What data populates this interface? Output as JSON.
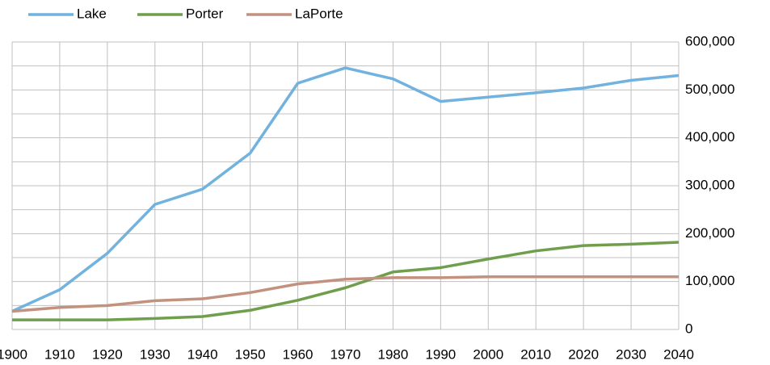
{
  "chart_data": {
    "type": "line",
    "x": [
      1900,
      1910,
      1920,
      1930,
      1940,
      1950,
      1960,
      1970,
      1980,
      1990,
      2000,
      2010,
      2020,
      2030,
      2040
    ],
    "series": [
      {
        "name": "Lake",
        "color": "#71b2de",
        "values": [
          38000,
          83000,
          159000,
          261000,
          293000,
          368000,
          514000,
          546000,
          523000,
          476000,
          485000,
          494000,
          504000,
          520000,
          530000
        ]
      },
      {
        "name": "Porter",
        "color": "#6f9e4c",
        "values": [
          20000,
          20000,
          20000,
          23000,
          27000,
          40000,
          61000,
          87000,
          120000,
          129000,
          147000,
          164000,
          175000,
          178000,
          182000
        ]
      },
      {
        "name": "LaPorte",
        "color": "#c3917f",
        "values": [
          38000,
          46000,
          50000,
          60000,
          64000,
          77000,
          95000,
          105000,
          108000,
          108000,
          110000,
          110000,
          110000,
          110000,
          110000
        ]
      }
    ],
    "xlim": [
      1900,
      2040
    ],
    "xticks": [
      1900,
      1910,
      1920,
      1930,
      1940,
      1950,
      1960,
      1970,
      1980,
      1990,
      2000,
      2010,
      2020,
      2030,
      2040
    ],
    "ylim": [
      0,
      600000
    ],
    "yticks": [
      0,
      {
        "value": 100000,
        "label": "100,000"
      },
      {
        "value": 200000,
        "label": "200,000"
      },
      {
        "value": 300000,
        "label": "300,000"
      },
      {
        "value": 400000,
        "label": "400,000"
      },
      {
        "value": 500000,
        "label": "500,000"
      },
      {
        "value": 600000,
        "label": "600,000"
      }
    ],
    "yminor_ticks": [
      50000,
      150000,
      250000,
      350000,
      450000,
      550000
    ],
    "grid": true,
    "y_axis_side": "right",
    "legend": "top-left"
  }
}
